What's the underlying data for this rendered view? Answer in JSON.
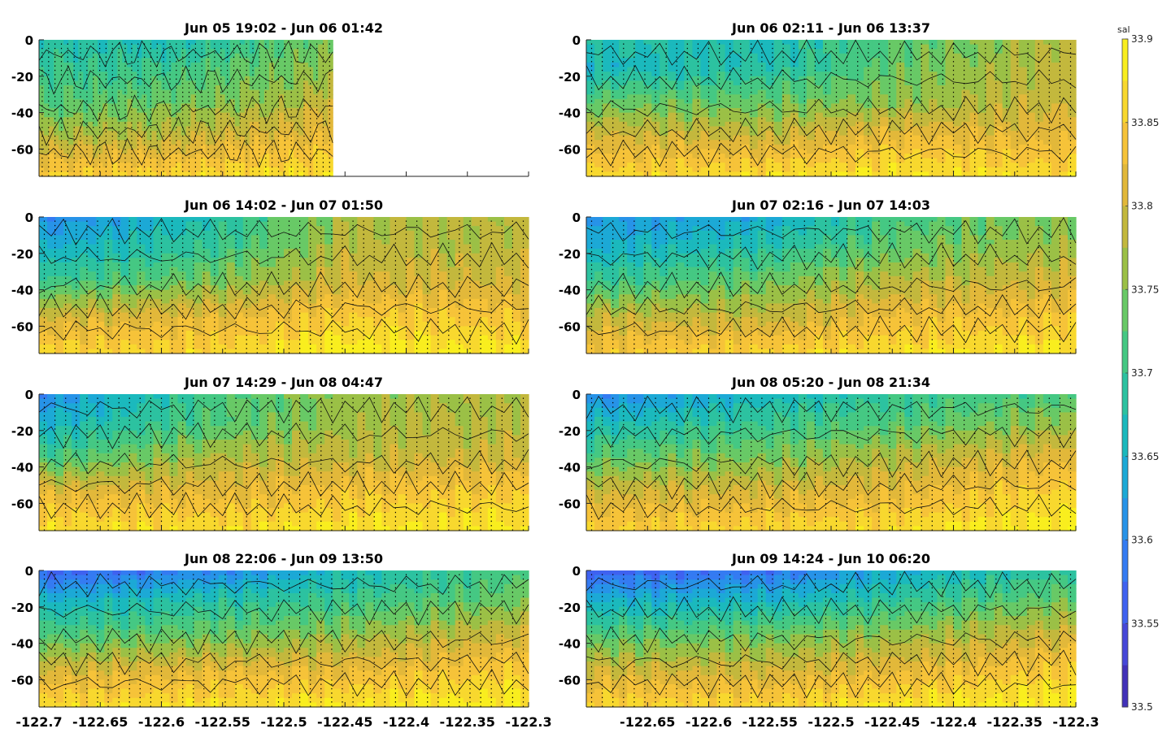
{
  "chart_data": {
    "type": "heatmap",
    "layout": "4x2 grid of contour panels",
    "variable": "sal",
    "x_ticks": [
      -122.7,
      -122.65,
      -122.6,
      -122.55,
      -122.5,
      -122.45,
      -122.4,
      -122.35,
      -122.3
    ],
    "x_tick_labels": [
      "-122.7",
      "-122.65",
      "-122.6",
      "-122.55",
      "-122.5",
      "-122.45",
      "-122.4",
      "-122.35",
      "-122.3"
    ],
    "xlim": [
      -122.7,
      -122.3
    ],
    "y_ticks": [
      0,
      -20,
      -40,
      -60
    ],
    "y_tick_labels": [
      "0",
      "-20",
      "-40",
      "-60"
    ],
    "ylim": [
      -75,
      0
    ],
    "colorbar": {
      "label": "sal",
      "range": [
        33.5,
        33.9
      ],
      "ticks": [
        "33.9",
        "33.85",
        "33.8",
        "33.75",
        "33.7",
        "33.65",
        "33.6",
        "33.55",
        "33.5"
      ],
      "colors": [
        "#3e26a8",
        "#4743d4",
        "#3e66f4",
        "#2e87f1",
        "#1ca6da",
        "#1bbcb9",
        "#36c691",
        "#5fcb6b",
        "#a4be41",
        "#d6b43a",
        "#f6bf3b",
        "#f8dc2c",
        "#f9f915"
      ]
    },
    "panels": [
      {
        "title": "Jun 05 19:02 - Jun 06 01:42",
        "data_until": -122.46,
        "profile": [
          {
            "x": -122.7,
            "levels": [
              33.68,
              33.7,
              33.72,
              33.78,
              33.85
            ]
          },
          {
            "x": -122.6,
            "levels": [
              33.67,
              33.7,
              33.74,
              33.79,
              33.86
            ]
          },
          {
            "x": -122.5,
            "levels": [
              33.72,
              33.74,
              33.77,
              33.82,
              33.87
            ]
          },
          {
            "x": -122.46,
            "levels": [
              33.74,
              33.76,
              33.8,
              33.83,
              33.87
            ]
          }
        ]
      },
      {
        "title": "Jun 06 02:11 - Jun 06 13:37",
        "profile": [
          {
            "x": -122.7,
            "levels": [
              33.68,
              33.66,
              33.74,
              33.81,
              33.86
            ]
          },
          {
            "x": -122.55,
            "levels": [
              33.67,
              33.68,
              33.74,
              33.8,
              33.87
            ]
          },
          {
            "x": -122.45,
            "levels": [
              33.72,
              33.73,
              33.76,
              33.83,
              33.88
            ]
          },
          {
            "x": -122.3,
            "levels": [
              33.79,
              33.79,
              33.8,
              33.82,
              33.86
            ]
          }
        ]
      },
      {
        "title": "Jun 06 14:02 - Jun 07 01:50",
        "profile": [
          {
            "x": -122.7,
            "levels": [
              33.6,
              33.64,
              33.7,
              33.8,
              33.86
            ]
          },
          {
            "x": -122.55,
            "levels": [
              33.68,
              33.7,
              33.75,
              33.82,
              33.86
            ]
          },
          {
            "x": -122.45,
            "levels": [
              33.77,
              33.78,
              33.8,
              33.85,
              33.89
            ]
          },
          {
            "x": -122.3,
            "levels": [
              33.78,
              33.78,
              33.8,
              33.84,
              33.88
            ]
          }
        ]
      },
      {
        "title": "Jun 07 02:16 - Jun 07 14:03",
        "profile": [
          {
            "x": -122.7,
            "levels": [
              33.62,
              33.64,
              33.7,
              33.79,
              33.84
            ]
          },
          {
            "x": -122.55,
            "levels": [
              33.64,
              33.68,
              33.74,
              33.79,
              33.86
            ]
          },
          {
            "x": -122.45,
            "levels": [
              33.71,
              33.73,
              33.78,
              33.83,
              33.87
            ]
          },
          {
            "x": -122.3,
            "levels": [
              33.76,
              33.77,
              33.8,
              33.84,
              33.88
            ]
          }
        ]
      },
      {
        "title": "Jun 07 14:29 - Jun 08 04:47",
        "profile": [
          {
            "x": -122.7,
            "levels": [
              33.6,
              33.65,
              33.71,
              33.82,
              33.87
            ]
          },
          {
            "x": -122.55,
            "levels": [
              33.72,
              33.72,
              33.78,
              33.82,
              33.87
            ]
          },
          {
            "x": -122.45,
            "levels": [
              33.76,
              33.77,
              33.79,
              33.84,
              33.88
            ]
          },
          {
            "x": -122.3,
            "levels": [
              33.78,
              33.78,
              33.8,
              33.85,
              33.88
            ]
          }
        ]
      },
      {
        "title": "Jun 08 05:20 - Jun 08 21:34",
        "profile": [
          {
            "x": -122.7,
            "levels": [
              33.6,
              33.66,
              33.73,
              33.8,
              33.85
            ]
          },
          {
            "x": -122.55,
            "levels": [
              33.66,
              33.7,
              33.75,
              33.81,
              33.86
            ]
          },
          {
            "x": -122.45,
            "levels": [
              33.7,
              33.72,
              33.78,
              33.82,
              33.87
            ]
          },
          {
            "x": -122.3,
            "levels": [
              33.72,
              33.76,
              33.82,
              33.86,
              33.89
            ]
          }
        ]
      },
      {
        "title": "Jun 08 22:06 - Jun 09 13:50",
        "profile": [
          {
            "x": -122.7,
            "levels": [
              33.56,
              33.64,
              33.72,
              33.8,
              33.87
            ]
          },
          {
            "x": -122.55,
            "levels": [
              33.6,
              33.68,
              33.74,
              33.82,
              33.87
            ]
          },
          {
            "x": -122.45,
            "levels": [
              33.66,
              33.7,
              33.76,
              33.82,
              33.88
            ]
          },
          {
            "x": -122.3,
            "levels": [
              33.72,
              33.74,
              33.8,
              33.85,
              33.89
            ]
          }
        ]
      },
      {
        "title": "Jun 09 14:24 - Jun 10 06:20",
        "profile": [
          {
            "x": -122.7,
            "levels": [
              33.56,
              33.64,
              33.72,
              33.8,
              33.86
            ]
          },
          {
            "x": -122.55,
            "levels": [
              33.58,
              33.65,
              33.74,
              33.8,
              33.86
            ]
          },
          {
            "x": -122.45,
            "levels": [
              33.64,
              33.69,
              33.76,
              33.82,
              33.88
            ]
          },
          {
            "x": -122.3,
            "levels": [
              33.7,
              33.74,
              33.8,
              33.85,
              33.89
            ]
          }
        ]
      }
    ]
  }
}
